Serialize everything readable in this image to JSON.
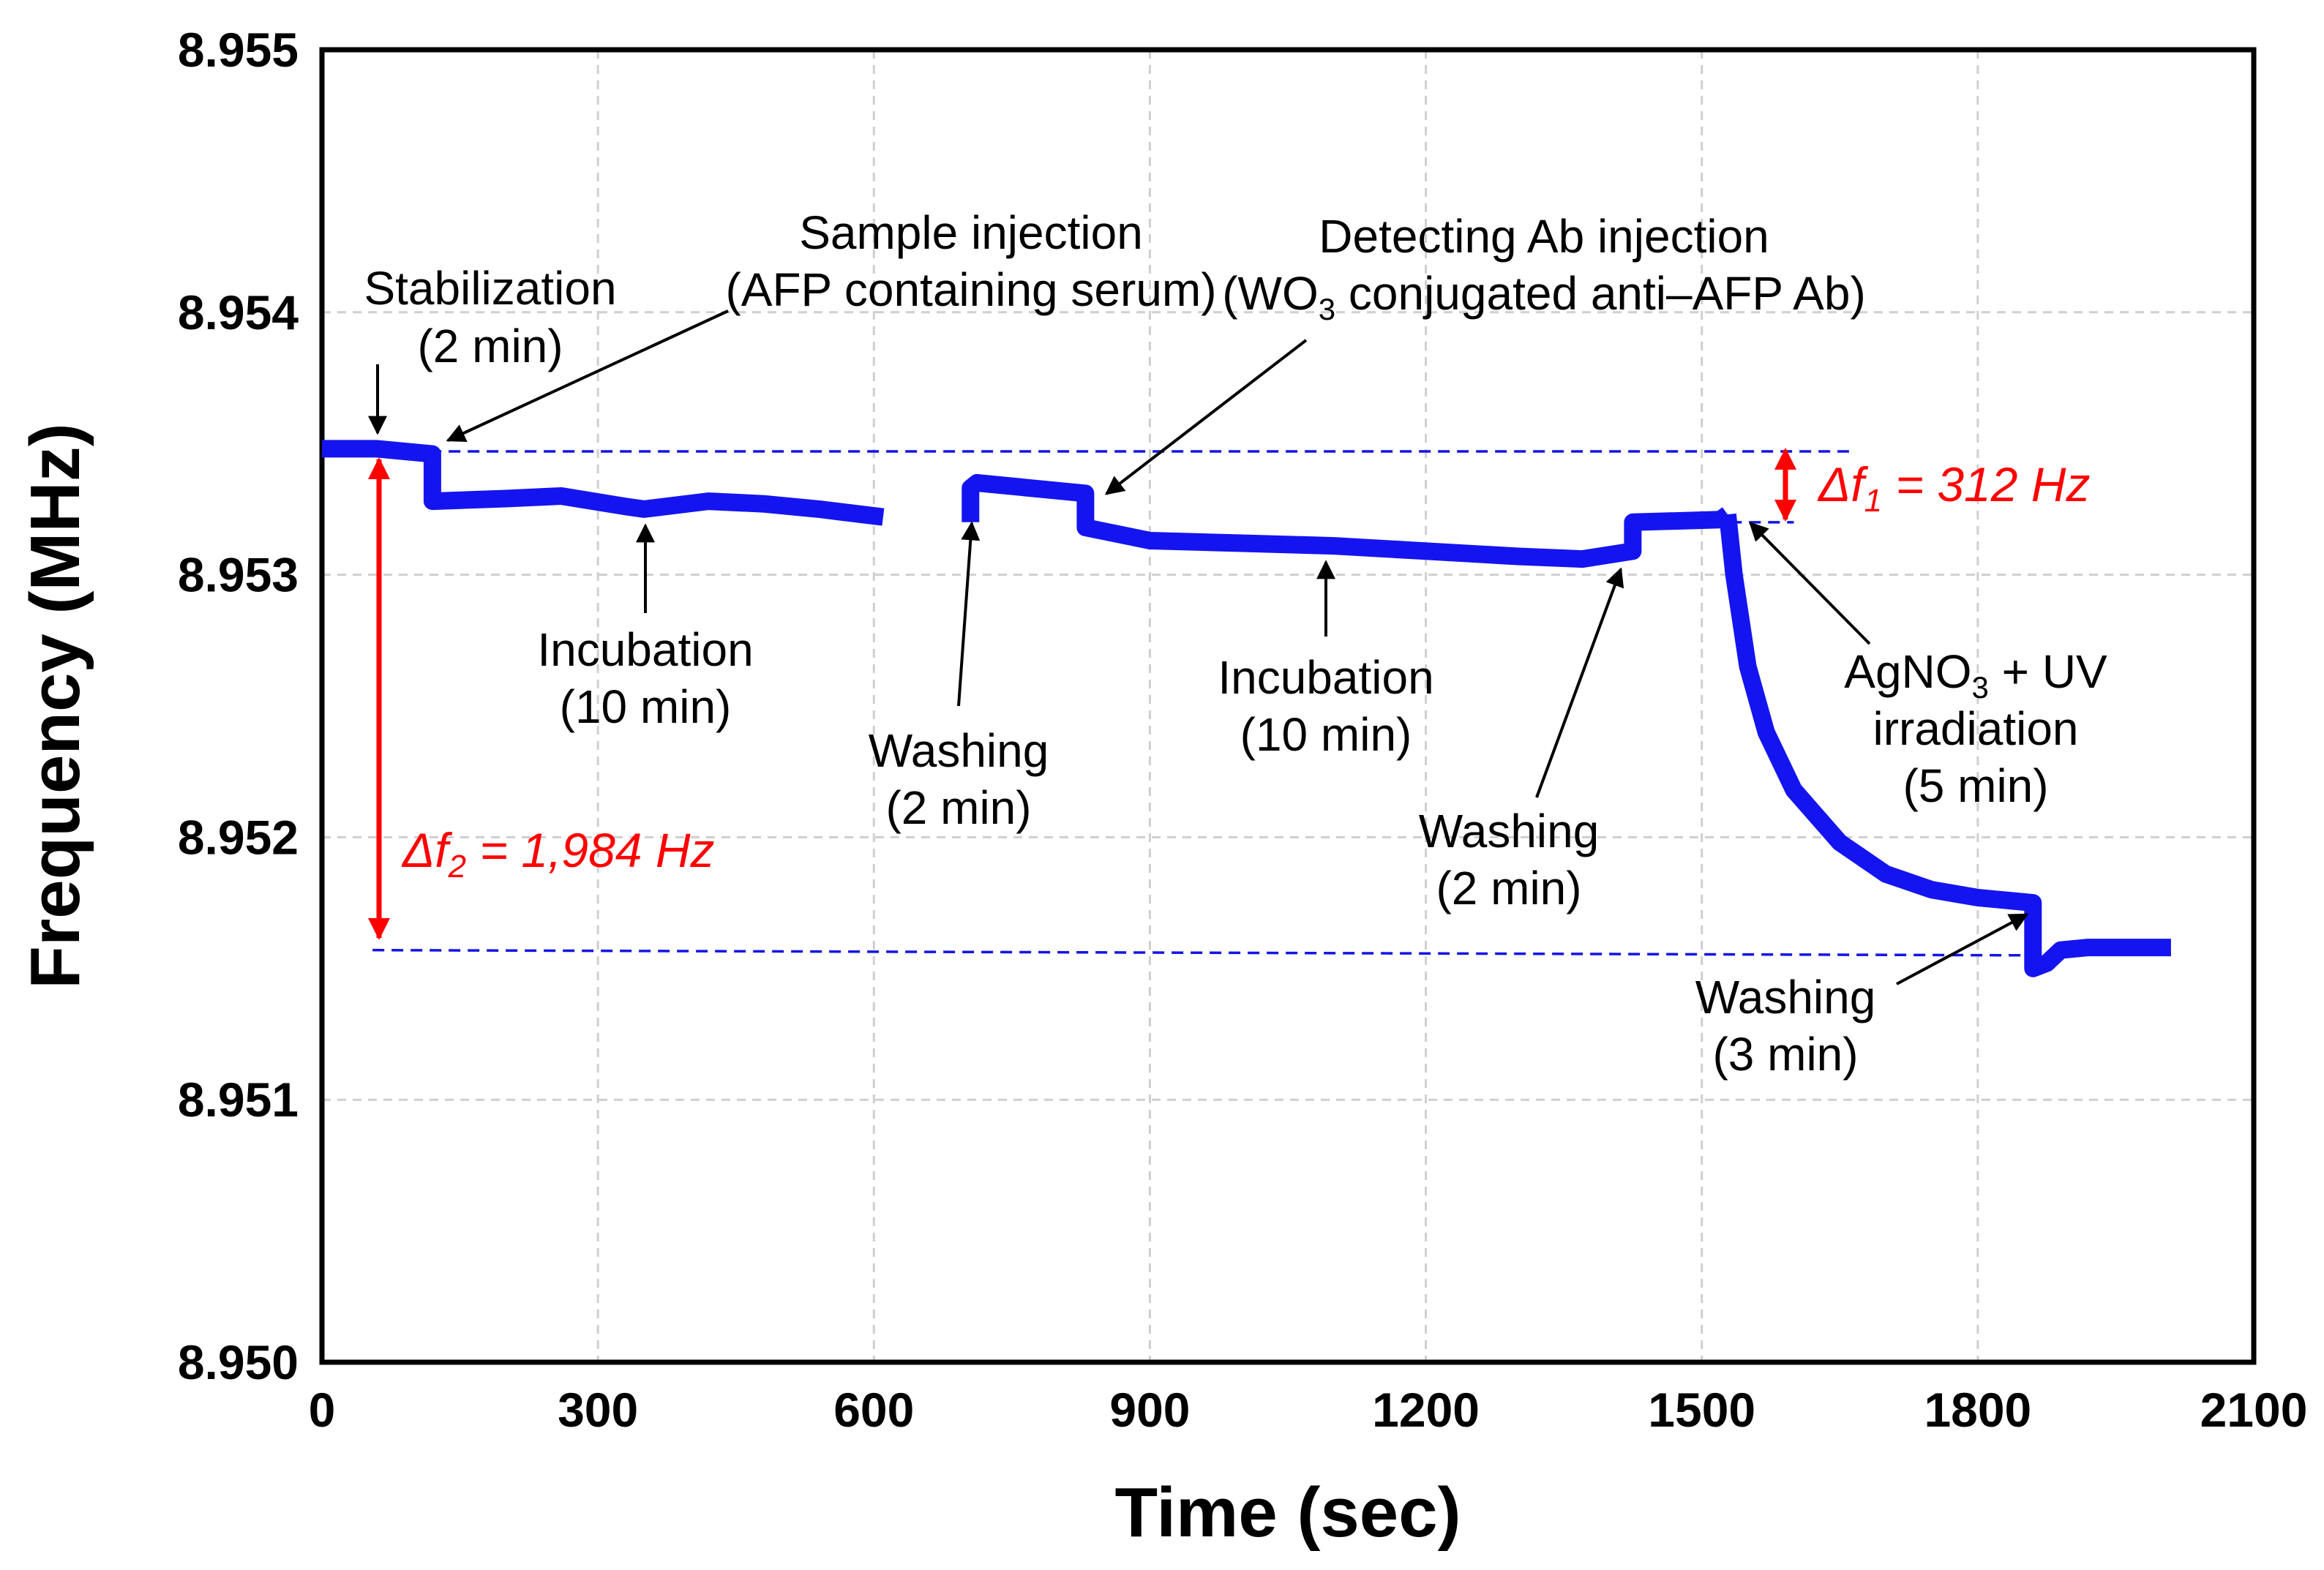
{
  "chart_data": {
    "type": "line",
    "title": "",
    "xlabel": "Time (sec)",
    "ylabel": "Frequency (MHz)",
    "xlim": [
      0,
      2100
    ],
    "ylim": [
      8.95,
      8.955
    ],
    "xticks": [
      0,
      300,
      600,
      900,
      1200,
      1500,
      1800,
      2100
    ],
    "yticks": [
      8.95,
      8.951,
      8.952,
      8.953,
      8.954,
      8.955
    ],
    "xtick_labels": [
      "0",
      "300",
      "600",
      "900",
      "1200",
      "1500",
      "1800",
      "2100"
    ],
    "ytick_labels": [
      "8.950",
      "8.951",
      "8.952",
      "8.953",
      "8.954",
      "8.955"
    ],
    "grid": true,
    "series_color": "#1414f0",
    "annotation_color": "#ff0000",
    "guide_color": "#1414e6",
    "segments": [
      {
        "name": "stabilization-and-sample-incubation",
        "x": [
          0,
          60,
          120,
          120,
          200,
          260,
          330,
          350,
          420,
          480,
          540,
          610
        ],
        "y": [
          8.95348,
          8.95348,
          8.95346,
          8.95328,
          8.95329,
          8.9533,
          8.95326,
          8.95325,
          8.95328,
          8.95327,
          8.95325,
          8.95322
        ]
      },
      {
        "name": "washing-and-detecting-ab-incubation",
        "x": [
          705,
          705,
          712,
          830,
          830,
          900,
          1000,
          1100,
          1200,
          1300,
          1370,
          1425,
          1425,
          1520,
          1528
        ],
        "y": [
          8.9532,
          8.95333,
          8.95335,
          8.95331,
          8.95318,
          8.95313,
          8.95312,
          8.95311,
          8.95309,
          8.95307,
          8.95306,
          8.95309,
          8.9532,
          8.95321,
          8.95323
        ]
      },
      {
        "name": "silver-enhancement-and-washing",
        "x": [
          1528,
          1535,
          1550,
          1570,
          1600,
          1650,
          1700,
          1750,
          1800,
          1860,
          1860,
          1875,
          1890,
          1920,
          1960,
          2010
        ],
        "y": [
          8.95323,
          8.953,
          8.95265,
          8.9524,
          8.95218,
          8.95198,
          8.95186,
          8.9518,
          8.95177,
          8.95175,
          8.9515,
          8.95152,
          8.95157,
          8.95158,
          8.95158,
          8.95158
        ]
      }
    ],
    "guides": [
      {
        "x": [
          55,
          1660
        ],
        "y": [
          8.95347,
          8.95347
        ]
      },
      {
        "x": [
          1510,
          1600
        ],
        "y": [
          8.9532,
          8.9532
        ]
      },
      {
        "x": [
          55,
          1860
        ],
        "y": [
          8.95157,
          8.95155
        ]
      }
    ],
    "annotations": {
      "stabilization": [
        "Stabilization",
        "(2 min)"
      ],
      "sample_injection": [
        "Sample injection",
        "(AFP containing serum)"
      ],
      "detecting_injection_line1": "Detecting Ab injection",
      "detecting_injection_line2_pre": "(WO",
      "detecting_injection_line2_sub": "3",
      "detecting_injection_line2_post": " conjugated anti–AFP Ab)",
      "incubation_1": [
        "Incubation",
        "(10 min)"
      ],
      "washing_1": [
        "Washing",
        "(2 min)"
      ],
      "incubation_2": [
        "Incubation",
        "(10 min)"
      ],
      "washing_2": [
        "Washing",
        "(2 min)"
      ],
      "agno3_line1_pre": "AgNO",
      "agno3_line1_sub": "3",
      "agno3_line1_post": " + UV",
      "agno3_line2": "irradiation",
      "agno3_line3": "(5 min)",
      "washing_3": [
        "Washing",
        "(3 min)"
      ],
      "delta_f1_sym": "Δf",
      "delta_f1_sub": "1",
      "delta_f1_value": " = 312 Hz",
      "delta_f2_sym": "Δf",
      "delta_f2_sub": "2",
      "delta_f2_value": " = 1,984 Hz"
    }
  }
}
